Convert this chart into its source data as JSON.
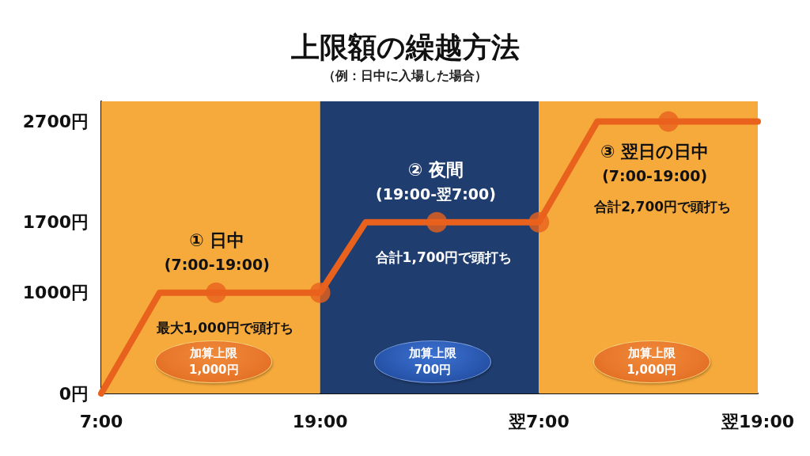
{
  "chart_data": {
    "type": "line",
    "title": "上限額の繰越方法",
    "subtitle": "（例：日中に入場した場合）",
    "xlim": [
      7,
      43
    ],
    "xticks": [
      {
        "value": 7,
        "label": "7:00"
      },
      {
        "value": 19,
        "label": "19:00"
      },
      {
        "value": 31,
        "label": "翌7:00"
      },
      {
        "value": 43,
        "label": "翌19:00"
      }
    ],
    "ylim": [
      0,
      2900
    ],
    "yticks": [
      {
        "value": 0,
        "label": "0円"
      },
      {
        "value": 1000,
        "label": "1000円"
      },
      {
        "value": 1700,
        "label": "1700円"
      },
      {
        "value": 2700,
        "label": "2700円"
      }
    ],
    "series": [
      {
        "color": "#e8621d",
        "x": [
          7,
          10.2,
          19,
          21.5,
          31,
          34.2,
          43
        ],
        "values": [
          0,
          1000,
          1000,
          1700,
          1700,
          2700,
          2700
        ],
        "marker": "none",
        "line_style": "solid"
      },
      {
        "type": "scatter",
        "color": "#e8621d",
        "x": [
          13.3,
          19,
          25.4,
          31,
          38.1
        ],
        "values": [
          1000,
          1000,
          1700,
          1700,
          2700
        ],
        "marker": "circle"
      }
    ],
    "bands": [
      {
        "axis": "x",
        "from": 7,
        "to": 19,
        "color": "#f6aa3c"
      },
      {
        "axis": "x",
        "from": 19,
        "to": 31,
        "color": "#1f3d6e"
      },
      {
        "axis": "x",
        "from": 31,
        "to": 43,
        "color": "#f6aa3c"
      }
    ],
    "annotations": [
      "① 日中\n(7:00-19:00)",
      "最大1,000円で頭打ち",
      "加算上限\n1,000円",
      "② 夜間\n(19:00-翌7:00)",
      "合計1,700円で頭打ち",
      "加算上限\n700円",
      "③ 翌日の日中\n(7:00-19:00)",
      "合計2,700円で頭打ち",
      "加算上限\n1,000円"
    ],
    "grid": false
  }
}
